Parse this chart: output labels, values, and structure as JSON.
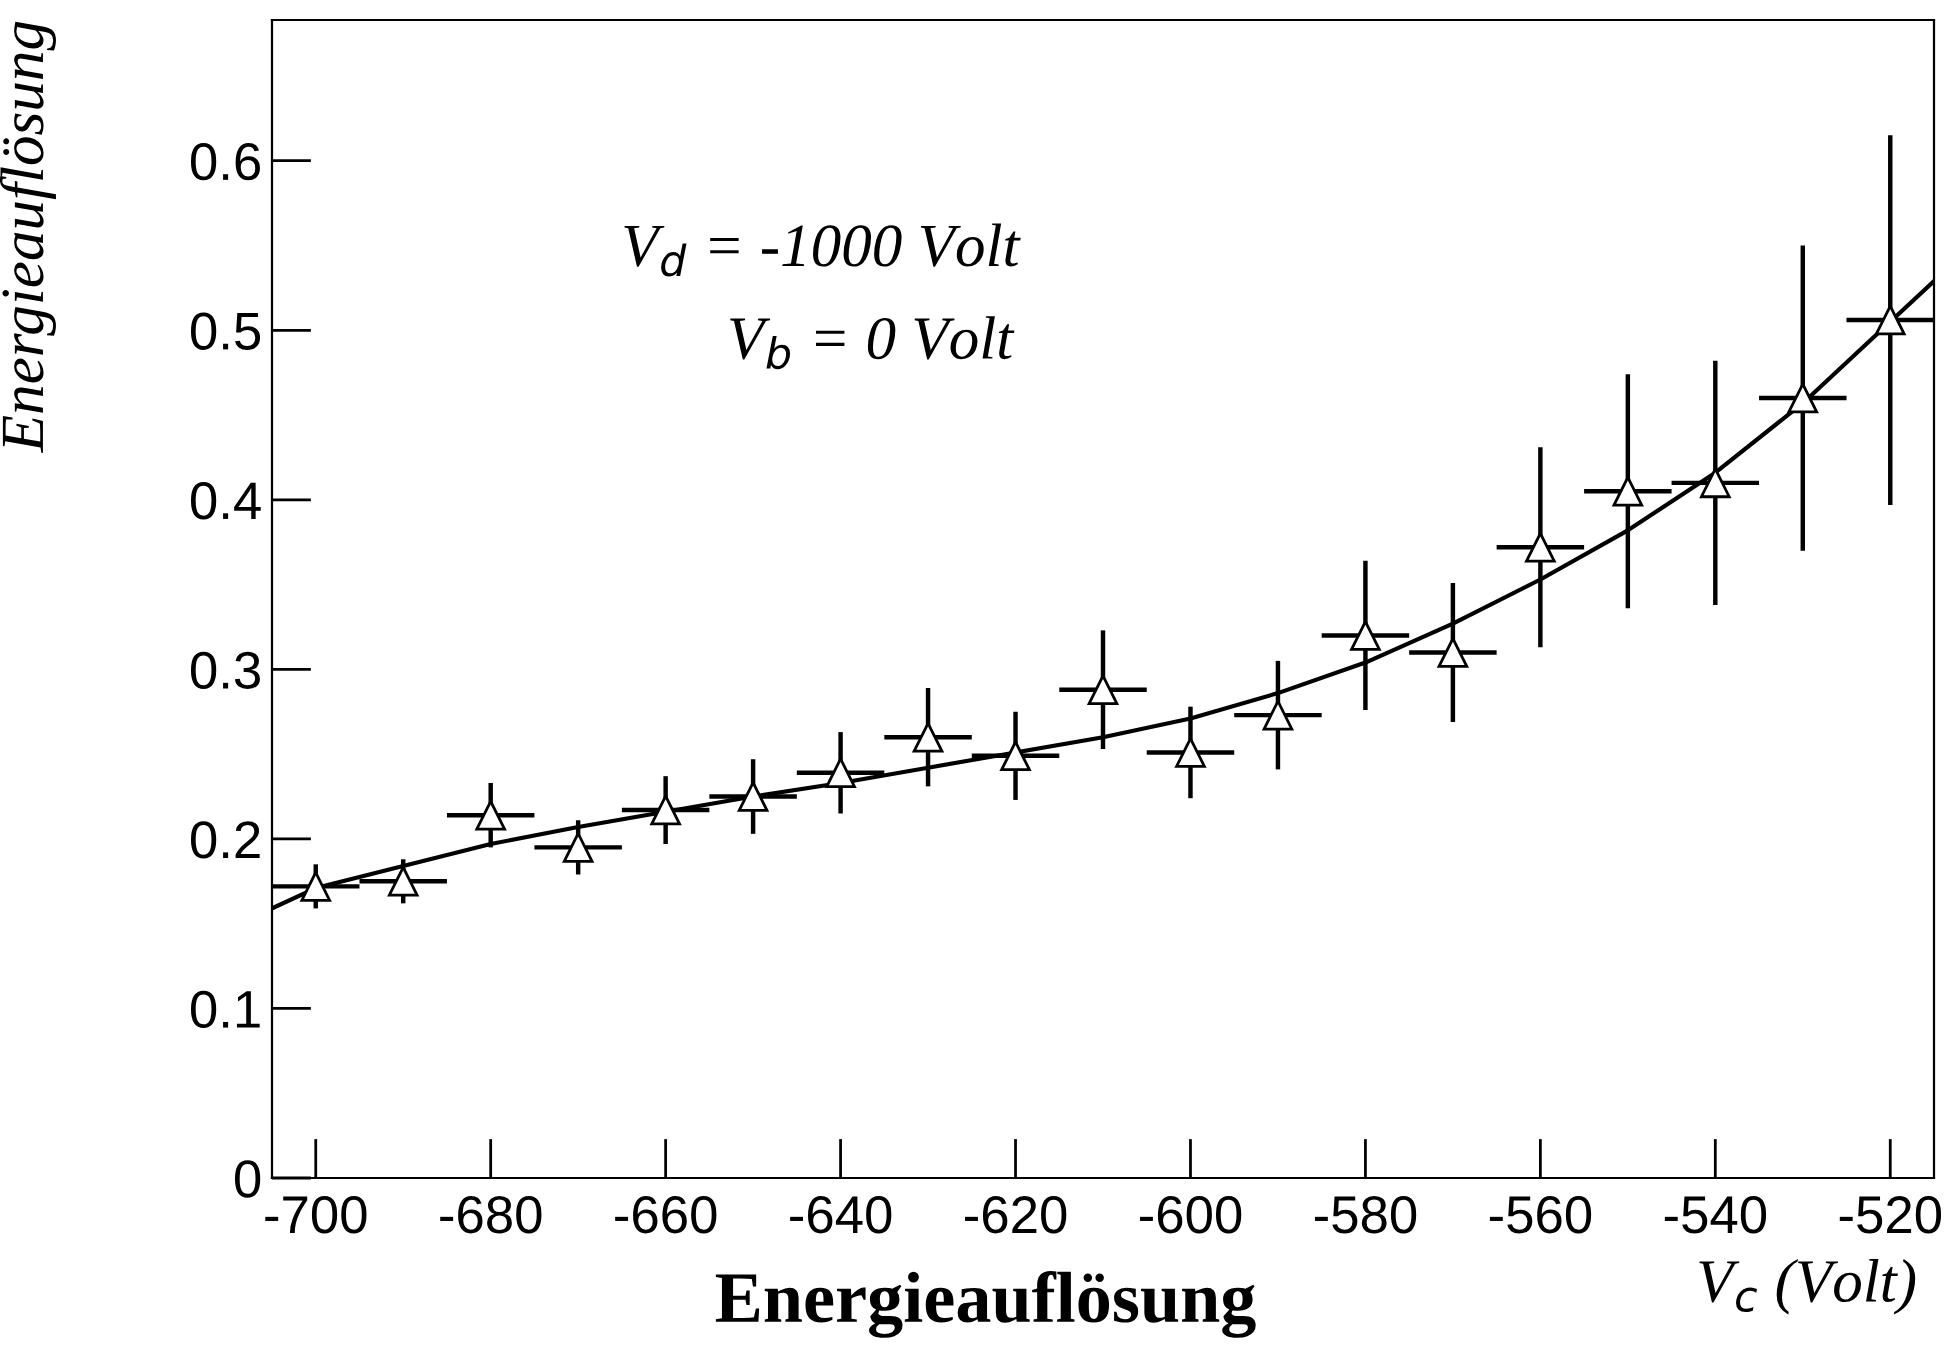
{
  "chart_data": {
    "type": "scatter",
    "title": "Energieauflösung",
    "xlabel": "V$_{c}$ (Volt)",
    "ylabel": "Energieauflösung",
    "annotations": [
      "V$_{d}$ = -1000 Volt",
      "V$_{b}$ = 0 Volt"
    ],
    "xlim": [
      -705,
      -515
    ],
    "xticks": [
      -700,
      -680,
      -660,
      -640,
      -620,
      -600,
      -580,
      -560,
      -540,
      -520
    ],
    "ylim": [
      0,
      0.683
    ],
    "yticks": [
      0,
      0.1,
      0.2,
      0.3,
      0.4,
      0.5,
      0.6
    ],
    "grid": false,
    "legend": false,
    "marker": "triangle",
    "series": [
      {
        "color": "#000000",
        "x": [
          -700,
          -690,
          -680,
          -670,
          -660,
          -650,
          -640,
          -630,
          -620,
          -610,
          -600,
          -590,
          -580,
          -570,
          -560,
          -550,
          -540,
          -530,
          -520
        ],
        "values": [
          0.172,
          0.175,
          0.214,
          0.195,
          0.217,
          0.225,
          0.239,
          0.26,
          0.249,
          0.288,
          0.251,
          0.273,
          0.32,
          0.31,
          0.372,
          0.405,
          0.41,
          0.46,
          0.506
        ],
        "errors": [
          0.013,
          0.013,
          0.019,
          0.016,
          0.02,
          0.022,
          0.024,
          0.029,
          0.026,
          0.035,
          0.027,
          0.032,
          0.044,
          0.041,
          0.059,
          0.069,
          0.072,
          0.09,
          0.109
        ],
        "xerrors": [
          5,
          5,
          5,
          5,
          5,
          5,
          5,
          5,
          5,
          5,
          5,
          5,
          5,
          5,
          5,
          5,
          5,
          5,
          5
        ]
      },
      {
        "type": "line",
        "color": "#000000",
        "marker": "none",
        "line_style": "solid",
        "x": [
          -705,
          -700,
          -690,
          -680,
          -670,
          -660,
          -650,
          -640,
          -630,
          -620,
          -610,
          -600,
          -590,
          -580,
          -570,
          -560,
          -550,
          -540,
          -530,
          -520,
          -515
        ],
        "values": [
          0.159,
          0.171,
          0.184,
          0.197,
          0.207,
          0.216,
          0.225,
          0.233,
          0.242,
          0.251,
          0.26,
          0.271,
          0.286,
          0.304,
          0.327,
          0.353,
          0.382,
          0.416,
          0.457,
          0.505,
          0.529
        ]
      }
    ]
  }
}
